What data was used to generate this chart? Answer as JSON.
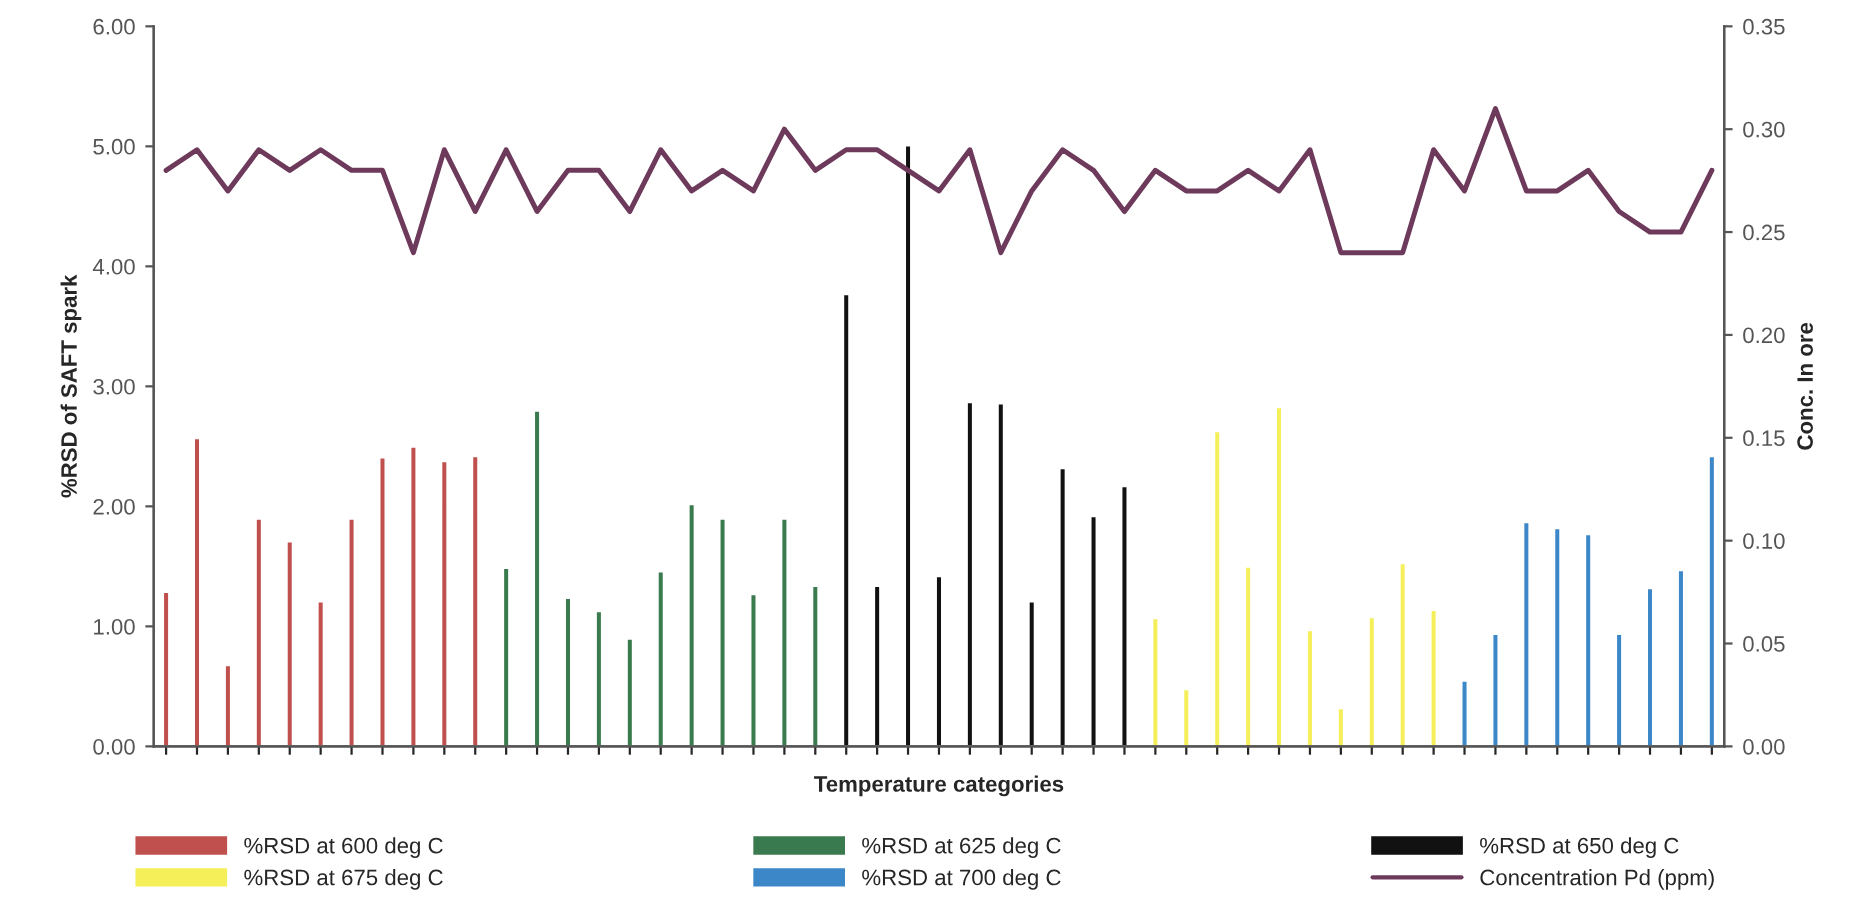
{
  "chart_data": {
    "type": "bar",
    "xlabel": "Temperature categories",
    "ylabel": "%RSD of SAFT spark",
    "y2label": "Conc. In ore",
    "categories": [
      null,
      null,
      null,
      null,
      null,
      null,
      null,
      null,
      null,
      null,
      null,
      null,
      null,
      null,
      null,
      null,
      null,
      null,
      null,
      null,
      null,
      null,
      null,
      null,
      null,
      null,
      null,
      null,
      null,
      null,
      null,
      null,
      null,
      null,
      null,
      null,
      null,
      null,
      null,
      null,
      null,
      null,
      null,
      null,
      null,
      null,
      null,
      null,
      null,
      null,
      null
    ],
    "series": [
      {
        "name": "%RSD at 600 deg C",
        "color": "#c0504d",
        "values": [
          1.29,
          2.57,
          0.68,
          1.9,
          1.71,
          1.21,
          1.9,
          2.41,
          2.5,
          2.38,
          2.42,
          null,
          null,
          null,
          null,
          null,
          null,
          null,
          null,
          null,
          null,
          null,
          null,
          null,
          null,
          null,
          null,
          null,
          null,
          null,
          null,
          null,
          null,
          null,
          null,
          null,
          null,
          null,
          null,
          null,
          null,
          null,
          null,
          null,
          null,
          null,
          null,
          null,
          null,
          null,
          null
        ]
      },
      {
        "name": "%RSD at 625 deg C",
        "color": "#3a7a4f",
        "values": [
          null,
          null,
          null,
          null,
          null,
          null,
          null,
          null,
          null,
          null,
          null,
          1.49,
          2.8,
          1.24,
          1.13,
          0.9,
          1.46,
          2.02,
          1.9,
          1.27,
          1.9,
          1.34,
          null,
          null,
          null,
          null,
          null,
          null,
          null,
          null,
          null,
          null,
          null,
          null,
          null,
          null,
          null,
          null,
          null,
          null,
          null,
          null,
          null,
          null,
          null,
          null,
          null,
          null,
          null,
          null,
          null
        ]
      },
      {
        "name": "%RSD at 650 deg C",
        "color": "#111111",
        "values": [
          null,
          null,
          null,
          null,
          null,
          null,
          null,
          null,
          null,
          null,
          null,
          null,
          null,
          null,
          null,
          null,
          null,
          null,
          null,
          null,
          null,
          null,
          3.77,
          1.34,
          5.01,
          1.42,
          2.87,
          2.86,
          1.21,
          2.32,
          1.92,
          2.17,
          null,
          null,
          null,
          null,
          null,
          null,
          null,
          null,
          null,
          null,
          null,
          null,
          null,
          null,
          null,
          null,
          null,
          null,
          null
        ]
      },
      {
        "name": "%RSD at 675 deg C",
        "color": "#f5ef5a",
        "values": [
          null,
          null,
          null,
          null,
          null,
          null,
          null,
          null,
          null,
          null,
          null,
          null,
          null,
          null,
          null,
          null,
          null,
          null,
          null,
          null,
          null,
          null,
          null,
          null,
          null,
          null,
          null,
          null,
          null,
          null,
          null,
          null,
          1.07,
          0.48,
          2.63,
          1.5,
          2.83,
          0.97,
          0.32,
          1.08,
          1.53,
          1.14,
          null,
          null,
          null,
          null,
          null,
          null,
          null,
          null,
          null
        ]
      },
      {
        "name": "%RSD at 700 deg C",
        "color": "#3b87c8",
        "values": [
          null,
          null,
          null,
          null,
          null,
          null,
          null,
          null,
          null,
          null,
          null,
          null,
          null,
          null,
          null,
          null,
          null,
          null,
          null,
          null,
          null,
          null,
          null,
          null,
          null,
          null,
          null,
          null,
          null,
          null,
          null,
          null,
          null,
          null,
          null,
          null,
          null,
          null,
          null,
          null,
          null,
          null,
          0.55,
          0.94,
          1.87,
          1.82,
          1.77,
          0.94,
          1.32,
          1.47,
          2.42
        ]
      },
      {
        "name": "Concentration Pd (ppm)",
        "type": "line",
        "axis": "y2",
        "color": "#6e3a5c",
        "values": [
          0.28,
          0.29,
          0.27,
          0.29,
          0.28,
          0.29,
          0.28,
          0.28,
          0.24,
          0.29,
          0.26,
          0.29,
          0.26,
          0.28,
          0.28,
          0.26,
          0.29,
          0.27,
          0.28,
          0.27,
          0.3,
          0.28,
          0.29,
          0.29,
          0.28,
          0.27,
          0.29,
          0.24,
          0.27,
          0.29,
          0.28,
          0.26,
          0.28,
          0.27,
          0.27,
          0.28,
          0.27,
          0.29,
          0.24,
          0.24,
          0.24,
          0.29,
          0.27,
          0.31,
          0.27,
          0.27,
          0.28,
          0.26,
          0.25,
          0.25,
          0.28
        ]
      }
    ],
    "ylim": [
      0,
      6
    ],
    "yticks": [
      {
        "value": 0,
        "label": "0.00"
      },
      {
        "value": 1,
        "label": "1.00"
      },
      {
        "value": 2,
        "label": "2.00"
      },
      {
        "value": 3,
        "label": "3.00"
      },
      {
        "value": 4,
        "label": "4.00"
      },
      {
        "value": 5,
        "label": "5.00"
      },
      {
        "value": 6,
        "label": "6.00"
      }
    ],
    "y2lim": [
      0,
      0.35
    ],
    "y2ticks": [
      {
        "value": 0,
        "label": "0.00"
      },
      {
        "value": 0.05,
        "label": "0.05"
      },
      {
        "value": 0.1,
        "label": "0.10"
      },
      {
        "value": 0.15,
        "label": "0.15"
      },
      {
        "value": 0.2,
        "label": "0.20"
      },
      {
        "value": 0.25,
        "label": "0.25"
      },
      {
        "value": 0.3,
        "label": "0.30"
      },
      {
        "value": 0.35,
        "label": "0.35"
      }
    ],
    "legend": "bottom",
    "grid": false,
    "marker": "none",
    "line_style": "solid"
  }
}
